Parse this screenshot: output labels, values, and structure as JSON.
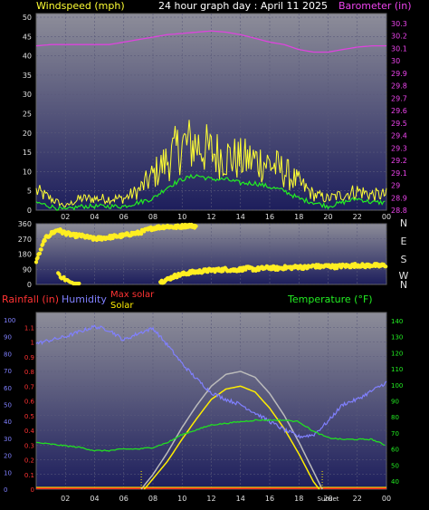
{
  "header": {
    "windspeed_label": "Windspeed (mph)",
    "title": "24 hour graph day : April 11 2025",
    "barometer_label": "Barometer (in)"
  },
  "colors": {
    "background": "#000000",
    "plot_top": "#8a8a96",
    "plot_bottom": "#1c1d5a",
    "windspeed": "#ffff33",
    "windspeed_avg": "#22ee22",
    "barometer": "#dd44dd",
    "direction": "#ffee22",
    "rainfall": "#ff2222",
    "humidity": "#8080ff",
    "max_solar": "#bbbbbb",
    "solar": "#ffee00",
    "temperature": "#22dd22",
    "axis_text": "#e0e0e0"
  },
  "chart_data": [
    {
      "type": "line",
      "name": "wind-barometer",
      "x_ticks": [
        "02",
        "04",
        "06",
        "08",
        "10",
        "12",
        "14",
        "16",
        "18",
        "20",
        "22",
        "00"
      ],
      "y_left": {
        "label": "Windspeed (mph)",
        "ticks": [
          0,
          5,
          10,
          15,
          20,
          25,
          30,
          35,
          40,
          45,
          50
        ],
        "range": [
          0,
          50
        ]
      },
      "y_right": {
        "label": "Barometer (in)",
        "ticks": [
          "28.8",
          "28.9",
          "29",
          "29.1",
          "29.2",
          "29.3",
          "29.4",
          "29.5",
          "29.6",
          "29.7",
          "29.8",
          "29.9",
          "30",
          "30.1",
          "30.2",
          "30.3"
        ],
        "range": [
          28.8,
          30.35
        ]
      },
      "grid": true,
      "series": [
        {
          "hour": [
            0,
            1,
            2,
            3,
            4,
            5,
            6,
            7,
            8,
            9,
            10,
            11,
            12,
            13,
            14,
            15,
            16,
            17,
            18,
            19,
            20,
            21,
            22,
            23,
            24
          ],
          "values": [
            5,
            3,
            1,
            3,
            3,
            3,
            3,
            5,
            9,
            13,
            17,
            17,
            15,
            14,
            13,
            13,
            12,
            10,
            7,
            4,
            3,
            4,
            5,
            4,
            4
          ]
        },
        {
          "hour": [
            0,
            1,
            2,
            3,
            4,
            5,
            6,
            7,
            8,
            9,
            10,
            11,
            12,
            13,
            14,
            15,
            16,
            17,
            18,
            19,
            20,
            21,
            22,
            23,
            24
          ],
          "values": [
            2,
            1,
            0,
            1,
            1,
            1,
            1,
            2,
            3,
            6,
            8,
            9,
            8,
            8,
            7,
            7,
            6,
            5,
            3,
            2,
            1,
            2,
            3,
            2,
            2
          ]
        },
        {
          "hour": [
            0,
            1,
            2,
            3,
            4,
            5,
            6,
            7,
            8,
            9,
            10,
            11,
            12,
            13,
            14,
            15,
            16,
            17,
            18,
            19,
            20,
            21,
            22,
            23,
            24
          ],
          "values": [
            30.12,
            30.13,
            30.13,
            30.13,
            30.13,
            30.13,
            30.15,
            30.17,
            30.19,
            30.21,
            30.22,
            30.23,
            30.24,
            30.23,
            30.21,
            30.18,
            30.15,
            30.13,
            30.09,
            30.07,
            30.07,
            30.09,
            30.11,
            30.12,
            30.12
          ]
        }
      ]
    },
    {
      "type": "scatter",
      "name": "wind-direction",
      "x_ticks": [],
      "y_left": {
        "ticks": [
          0,
          90,
          180,
          270,
          360
        ],
        "range": [
          0,
          360
        ]
      },
      "y_right": {
        "ticks": [
          "N",
          "W",
          "S",
          "E",
          "N"
        ]
      },
      "grid": true,
      "series": [
        {
          "hour": [
            0.0,
            0.3,
            0.6,
            1.0,
            1.5,
            1.8,
            2.2,
            2.6,
            3.0,
            3.5,
            4.0,
            4.5,
            5.0,
            5.5,
            6.0,
            6.5,
            7.0,
            7.5,
            8.0,
            8.5,
            9.0,
            9.5,
            10.0,
            10.5,
            11.0
          ],
          "values": [
            140,
            200,
            270,
            300,
            325,
            310,
            300,
            290,
            290,
            280,
            270,
            275,
            280,
            285,
            290,
            300,
            305,
            320,
            335,
            340,
            345,
            340,
            345,
            350,
            345
          ]
        },
        {
          "hour": [
            1.5,
            2.0,
            2.5,
            3.0
          ],
          "values": [
            60,
            30,
            0,
            0
          ]
        },
        {
          "hour": [
            8.5,
            9.0,
            9.5,
            10.0,
            10.5,
            11.0,
            11.5,
            12.0,
            12.5,
            13.0,
            13.5,
            14.0,
            14.5,
            15.0,
            15.5,
            16.0,
            16.5,
            17.0,
            17.5,
            18.0,
            18.5,
            19.0,
            19.5,
            20.0,
            20.5,
            21.0,
            21.5,
            22.0,
            22.5,
            23.0,
            23.5,
            24.0
          ],
          "values": [
            15,
            30,
            50,
            60,
            70,
            75,
            80,
            85,
            85,
            90,
            85,
            90,
            95,
            90,
            95,
            100,
            95,
            100,
            100,
            105,
            100,
            110,
            105,
            110,
            105,
            110,
            110,
            115,
            110,
            115,
            110,
            115
          ]
        }
      ]
    },
    {
      "type": "line",
      "name": "rain-humidity-solar-temperature",
      "x_ticks": [
        "02",
        "04",
        "06",
        "08",
        "10",
        "12",
        "14",
        "16",
        "18",
        "20",
        "22",
        "00"
      ],
      "y_left_rain": {
        "label": "Rainfall (in)",
        "ticks": [
          "0",
          "0.1",
          "0.2",
          "0.3",
          "0.4",
          "0.5",
          "0.6",
          "0.7",
          "0.8",
          "0.9",
          "1",
          "1.1"
        ],
        "range": [
          0,
          1.2
        ]
      },
      "y_left_humidity": {
        "label": "Humidity",
        "ticks": [
          0,
          10,
          20,
          30,
          40,
          50,
          60,
          70,
          80,
          90,
          100
        ],
        "range": [
          0,
          100
        ]
      },
      "y_right": {
        "label": "Temperature (°F)",
        "ticks": [
          40,
          50,
          60,
          70,
          80,
          90,
          100,
          110,
          120,
          130,
          140
        ],
        "range": [
          35,
          145
        ]
      },
      "legend": [
        "Rainfall (in)",
        "Humidity",
        "Max solar",
        "Solar",
        "Temperature (°F)"
      ],
      "annotations": [
        "Sunset"
      ],
      "grid": true,
      "series": [
        {
          "name": "Rainfall (in)",
          "hour": [
            0,
            24
          ],
          "values": [
            0,
            0
          ]
        },
        {
          "name": "Humidity",
          "hour": [
            0,
            1,
            2,
            3,
            4,
            5,
            6,
            7,
            8,
            9,
            10,
            11,
            12,
            13,
            14,
            15,
            16,
            17,
            18,
            19,
            20,
            21,
            22,
            23,
            24
          ],
          "values": [
            86,
            88,
            90,
            93,
            96,
            94,
            88,
            92,
            95,
            85,
            74,
            65,
            57,
            53,
            50,
            45,
            40,
            35,
            31,
            32,
            40,
            50,
            53,
            58,
            63
          ]
        },
        {
          "name": "Max solar",
          "hour": [
            7.2,
            8,
            9,
            10,
            11,
            12,
            13,
            14,
            15,
            16,
            17,
            18,
            19,
            19.6
          ],
          "values": [
            0,
            0.1,
            0.25,
            0.42,
            0.57,
            0.7,
            0.78,
            0.8,
            0.76,
            0.65,
            0.5,
            0.32,
            0.12,
            0
          ]
        },
        {
          "name": "Solar",
          "hour": [
            7.4,
            8,
            9,
            10,
            11,
            12,
            13,
            14,
            15,
            16,
            17,
            18,
            19,
            19.4
          ],
          "values": [
            0,
            0.07,
            0.19,
            0.34,
            0.48,
            0.61,
            0.68,
            0.7,
            0.66,
            0.55,
            0.41,
            0.24,
            0.05,
            0
          ]
        },
        {
          "name": "Temperature (°F)",
          "hour": [
            0,
            1,
            2,
            3,
            4,
            5,
            6,
            7,
            8,
            9,
            10,
            11,
            12,
            13,
            14,
            15,
            16,
            17,
            18,
            19,
            20,
            21,
            22,
            23,
            24
          ],
          "values": [
            64,
            63,
            62,
            61,
            59,
            59,
            60,
            60,
            61,
            64,
            69,
            72,
            75,
            76,
            77,
            78,
            78,
            78,
            77,
            71,
            67,
            66,
            66,
            66,
            62
          ]
        }
      ]
    }
  ]
}
